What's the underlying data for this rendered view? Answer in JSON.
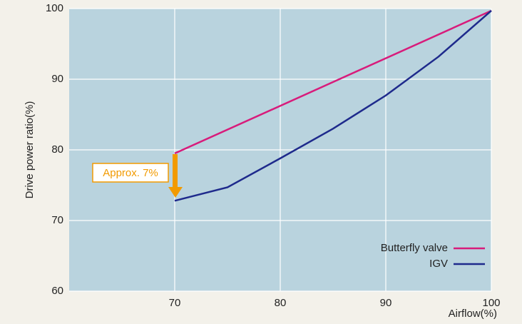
{
  "chart_data": {
    "type": "line",
    "xlabel": "Airflow(%)",
    "ylabel": "Drive power ratio(%)",
    "xlim": [
      60,
      100
    ],
    "xticks": [
      70,
      80,
      90,
      100
    ],
    "ylim": [
      60,
      100
    ],
    "yticks": [
      60,
      70,
      80,
      90,
      100
    ],
    "grid": true,
    "legend": "lower right",
    "annotation": "Approx. 7%",
    "series": [
      {
        "name": "Butterfly valve",
        "color": "#d81b7b",
        "x": [
          70,
          100
        ],
        "values": [
          79.5,
          99.7
        ]
      },
      {
        "name": "IGV",
        "color": "#1e2a8c",
        "x": [
          70,
          75,
          80,
          85,
          90,
          95,
          100
        ],
        "values": [
          72.8,
          74.7,
          78.8,
          83.0,
          87.7,
          93.2,
          99.7
        ]
      }
    ]
  }
}
